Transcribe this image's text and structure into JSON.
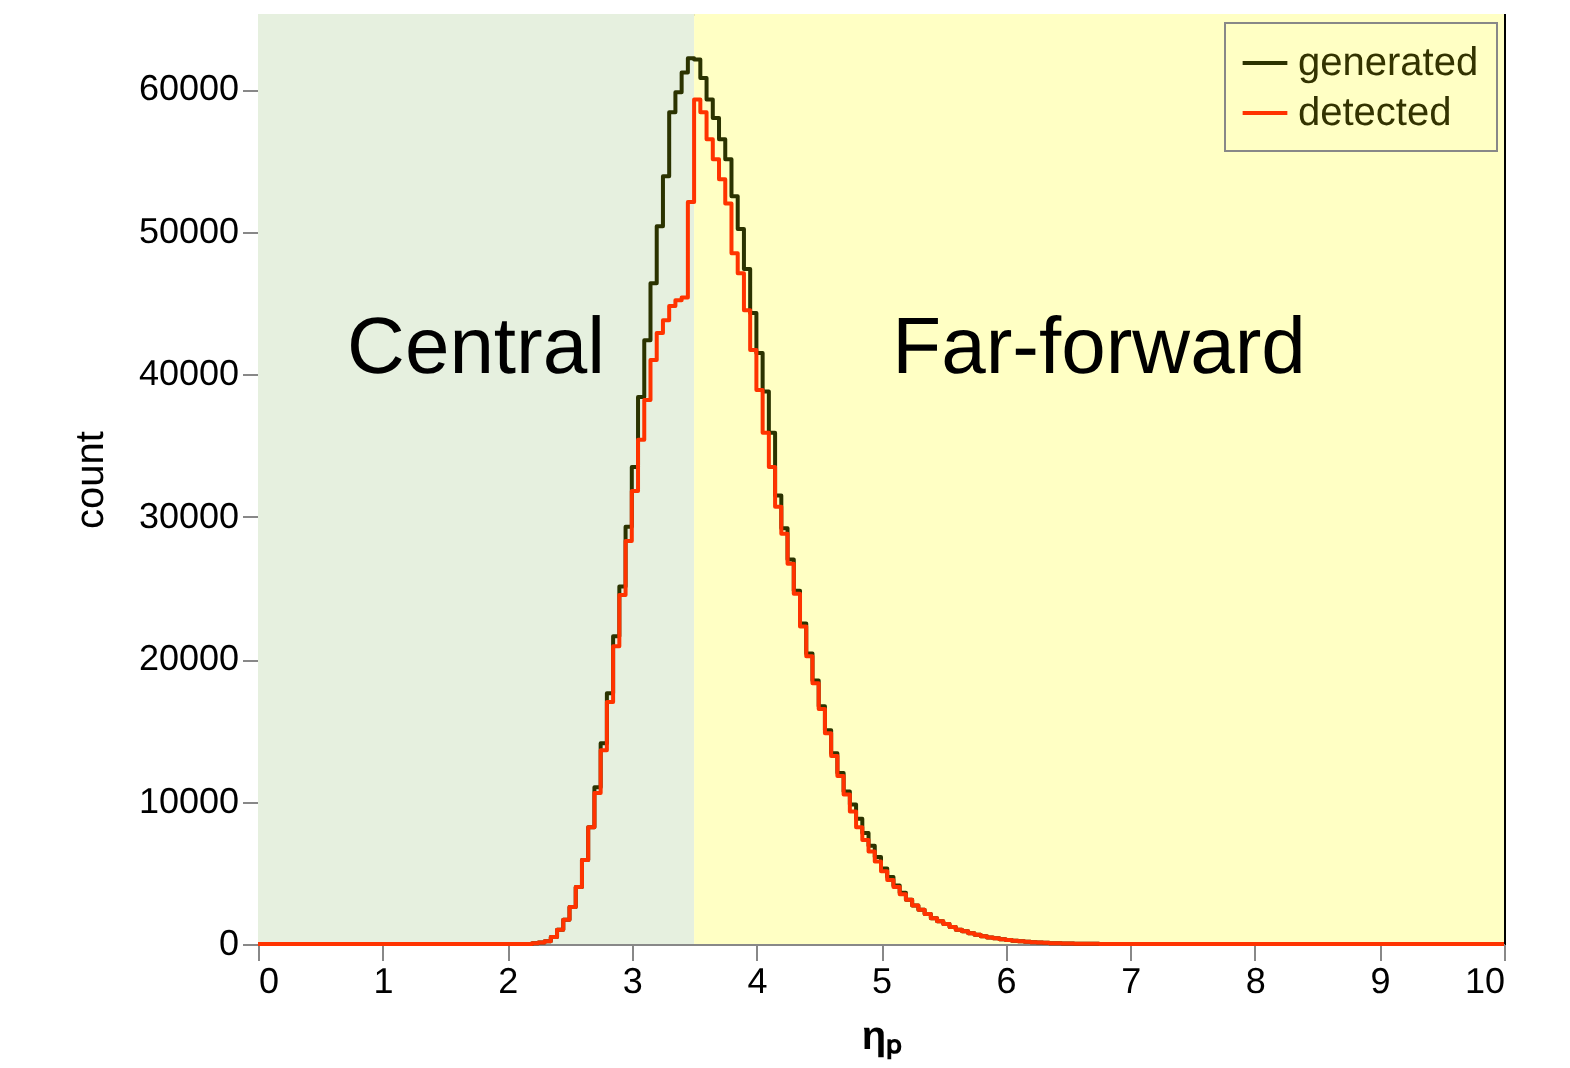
{
  "chart_data": {
    "type": "histogram",
    "xlabel": "ηₚ",
    "ylabel": "count",
    "bins": [
      0,
      0.05,
      0.1,
      0.15,
      0.2,
      0.25,
      0.3,
      0.35,
      0.4,
      0.45,
      0.5,
      0.55,
      0.6,
      0.65,
      0.7,
      0.75,
      0.8,
      0.85,
      0.9,
      0.95,
      1,
      1.05,
      1.1,
      1.15,
      1.2,
      1.25,
      1.3,
      1.35,
      1.4,
      1.45,
      1.5,
      1.55,
      1.6,
      1.65,
      1.7,
      1.75,
      1.8,
      1.85,
      1.9,
      1.95,
      2,
      2.05,
      2.1,
      2.15,
      2.2,
      2.25,
      2.3,
      2.35,
      2.4,
      2.45,
      2.5,
      2.55,
      2.6,
      2.65,
      2.7,
      2.75,
      2.8,
      2.85,
      2.9,
      2.95,
      3,
      3.05,
      3.1,
      3.15,
      3.2,
      3.25,
      3.3,
      3.35,
      3.4,
      3.45,
      3.5,
      3.55,
      3.6,
      3.65,
      3.7,
      3.75,
      3.8,
      3.85,
      3.9,
      3.95,
      4,
      4.05,
      4.1,
      4.15,
      4.2,
      4.25,
      4.3,
      4.35,
      4.4,
      4.45,
      4.5,
      4.55,
      4.6,
      4.65,
      4.7,
      4.75,
      4.8,
      4.85,
      4.9,
      4.95,
      5,
      5.05,
      5.1,
      5.15,
      5.2,
      5.25,
      5.3,
      5.35,
      5.4,
      5.45,
      5.5,
      5.55,
      5.6,
      5.65,
      5.7,
      5.75,
      5.8,
      5.85,
      5.9,
      5.95,
      6,
      6.05,
      6.1,
      6.15,
      6.2,
      6.25,
      6.3,
      6.35,
      6.4,
      6.45,
      6.5,
      6.55,
      6.6,
      6.65,
      6.7,
      6.75,
      6.8,
      6.85,
      6.9,
      6.95,
      7,
      7.05,
      7.1,
      7.15,
      7.2,
      7.25,
      7.3,
      7.35,
      7.4,
      7.45,
      7.5,
      7.55,
      7.6,
      7.65,
      7.7,
      7.75,
      7.8,
      7.85,
      7.9,
      7.95,
      8,
      8.05,
      8.1,
      8.15,
      8.2,
      8.25,
      8.3,
      8.35,
      8.4,
      8.45,
      8.5,
      8.55,
      8.6,
      8.65,
      8.7,
      8.75,
      8.8,
      8.85,
      8.9,
      8.95,
      9,
      9.05,
      9.1,
      9.15,
      9.2,
      9.25,
      9.3,
      9.35,
      9.4,
      9.45,
      9.5,
      9.55,
      9.6,
      9.65,
      9.7,
      9.75,
      9.8,
      9.85,
      9.9,
      9.95,
      10
    ],
    "series": [
      {
        "name": "generated",
        "color": "#2b3300",
        "values": [
          0,
          0,
          0,
          0,
          0,
          0,
          0,
          0,
          0,
          0,
          0,
          0,
          0,
          0,
          0,
          0,
          0,
          0,
          0,
          0,
          0,
          0,
          0,
          0,
          0,
          0,
          0,
          0,
          0,
          0,
          0,
          0,
          0,
          0,
          0,
          0,
          0,
          0,
          0,
          0,
          0,
          0,
          0,
          0,
          50,
          100,
          200,
          500,
          1000,
          1700,
          2600,
          4000,
          5900,
          8200,
          11000,
          14100,
          17600,
          21600,
          25100,
          29300,
          33500,
          38400,
          42400,
          46400,
          50400,
          53900,
          58400,
          59800,
          61200,
          62200,
          62100,
          60800,
          59300,
          58000,
          56500,
          55100,
          52500,
          50200,
          47400,
          44300,
          41500,
          38800,
          35900,
          31500,
          29200,
          27000,
          24800,
          22500,
          20400,
          18500,
          16700,
          15000,
          13400,
          12000,
          10700,
          9800,
          8800,
          7800,
          6900,
          6100,
          5300,
          4700,
          4100,
          3600,
          3100,
          2700,
          2400,
          2100,
          1800,
          1600,
          1400,
          1200,
          1000,
          900,
          750,
          650,
          550,
          450,
          400,
          330,
          280,
          230,
          190,
          150,
          120,
          100,
          80,
          60,
          50,
          40,
          30,
          20,
          20,
          10,
          10,
          0,
          0,
          0,
          0,
          0,
          0,
          0,
          0,
          0,
          0,
          0,
          0,
          0,
          0,
          0,
          0,
          0,
          0,
          0,
          0,
          0,
          0,
          0,
          0,
          0,
          0,
          0,
          0,
          0,
          0,
          0,
          0,
          0,
          0,
          0,
          0,
          0,
          0,
          0,
          0,
          0,
          0,
          0,
          0,
          0,
          0,
          0,
          0,
          0,
          0,
          0,
          0,
          0,
          0,
          0,
          0,
          0,
          0,
          0,
          0,
          0,
          0,
          0,
          0,
          0
        ]
      },
      {
        "name": "detected",
        "color": "#ff3300",
        "values": [
          0,
          0,
          0,
          0,
          0,
          0,
          0,
          0,
          0,
          0,
          0,
          0,
          0,
          0,
          0,
          0,
          0,
          0,
          0,
          0,
          0,
          0,
          0,
          0,
          0,
          0,
          0,
          0,
          0,
          0,
          0,
          0,
          0,
          0,
          0,
          0,
          0,
          0,
          0,
          0,
          0,
          0,
          0,
          0,
          50,
          100,
          200,
          500,
          1000,
          1700,
          2600,
          4000,
          5900,
          8200,
          10600,
          13600,
          17000,
          20900,
          24500,
          28300,
          31800,
          35400,
          38200,
          41000,
          42900,
          43800,
          44800,
          45200,
          45400,
          52100,
          59300,
          58400,
          56500,
          55100,
          53700,
          52000,
          48500,
          47100,
          44500,
          41700,
          38900,
          35900,
          33500,
          30700,
          28800,
          26700,
          24600,
          22300,
          20200,
          18300,
          16500,
          14800,
          13200,
          11800,
          10500,
          9300,
          8200,
          7300,
          6500,
          5800,
          5100,
          4500,
          4000,
          3500,
          3100,
          2700,
          2400,
          2100,
          1800,
          1600,
          1400,
          1200,
          1000,
          900,
          750,
          650,
          550,
          450,
          400,
          330,
          280,
          230,
          190,
          150,
          120,
          100,
          80,
          60,
          50,
          40,
          30,
          20,
          20,
          10,
          10,
          0,
          0,
          0,
          0,
          0,
          0,
          0,
          0,
          0,
          0,
          0,
          0,
          0,
          0,
          0,
          0,
          0,
          0,
          0,
          0,
          0,
          0,
          0,
          0,
          0,
          0,
          0,
          0,
          0,
          0,
          0,
          0,
          0,
          0,
          0,
          0,
          0,
          0,
          0,
          0,
          0,
          0,
          0,
          0,
          0,
          0,
          0,
          0,
          0,
          0,
          0,
          0,
          0,
          0,
          0,
          0,
          0,
          0,
          0,
          0,
          0,
          0,
          0,
          0,
          0
        ]
      }
    ],
    "bands": [
      {
        "axis": "x",
        "from": 0,
        "to": 3.5,
        "label": "Central",
        "color": "#e6f0df"
      },
      {
        "axis": "x",
        "from": 3.5,
        "to": 10,
        "label": "Far-forward",
        "color": "#ffffc4"
      }
    ],
    "xlim": [
      0,
      10
    ],
    "xticks": [
      0,
      1,
      2,
      3,
      4,
      5,
      6,
      7,
      8,
      9,
      10
    ],
    "ylim": [
      0,
      65300
    ],
    "yticks": [
      0,
      10000,
      20000,
      30000,
      40000,
      50000,
      60000
    ],
    "legend": "top right",
    "grid": false
  }
}
